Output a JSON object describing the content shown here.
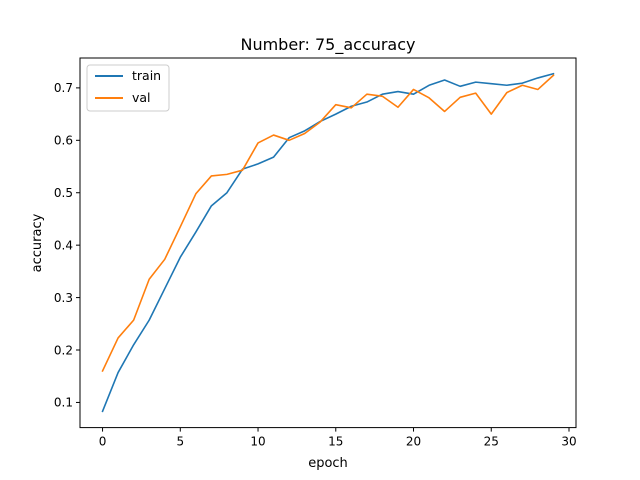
{
  "chart_data": {
    "type": "line",
    "title": "Number: 75_accuracy",
    "xlabel": "epoch",
    "ylabel": "accuracy",
    "xlim": [
      -1.45,
      30.45
    ],
    "ylim": [
      0.052,
      0.757
    ],
    "xticks": [
      0,
      5,
      10,
      15,
      20,
      25,
      30
    ],
    "yticks": [
      0.1,
      0.2,
      0.3,
      0.4,
      0.5,
      0.6,
      0.7
    ],
    "grid": false,
    "legend_position": "top-left",
    "x": [
      0,
      1,
      2,
      3,
      4,
      5,
      6,
      7,
      8,
      9,
      10,
      11,
      12,
      13,
      14,
      15,
      16,
      17,
      18,
      19,
      20,
      21,
      22,
      23,
      24,
      25,
      26,
      27,
      28,
      29
    ],
    "series": [
      {
        "name": "train",
        "color": "#1f77b4",
        "values": [
          0.083,
          0.157,
          0.21,
          0.257,
          0.317,
          0.377,
          0.425,
          0.475,
          0.5,
          0.545,
          0.555,
          0.568,
          0.605,
          0.618,
          0.636,
          0.65,
          0.665,
          0.673,
          0.688,
          0.693,
          0.688,
          0.705,
          0.715,
          0.703,
          0.711,
          0.708,
          0.705,
          0.709,
          0.719,
          0.727
        ]
      },
      {
        "name": "val",
        "color": "#ff7f0e",
        "values": [
          0.16,
          0.223,
          0.257,
          0.335,
          0.373,
          0.435,
          0.498,
          0.532,
          0.535,
          0.543,
          0.595,
          0.61,
          0.6,
          0.613,
          0.635,
          0.668,
          0.662,
          0.688,
          0.684,
          0.663,
          0.697,
          0.681,
          0.655,
          0.682,
          0.69,
          0.65,
          0.691,
          0.705,
          0.697,
          0.724
        ]
      }
    ]
  }
}
